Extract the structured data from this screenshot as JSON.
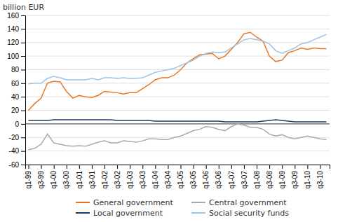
{
  "chart_data": {
    "type": "line",
    "ylabel": "billion EUR",
    "categories": [
      "q1-99",
      null,
      "q3-99",
      null,
      "q1-00",
      null,
      "q3-00",
      null,
      "q1-01",
      null,
      "q3-01",
      null,
      "q1-02",
      null,
      "q3-02",
      null,
      "q1-03",
      null,
      "q3-03",
      null,
      "q1-04",
      null,
      "q3-04",
      null,
      "q1-05",
      null,
      "q3-05",
      null,
      "q1-06",
      null,
      "q3-06",
      null,
      "q1-07",
      null,
      "q3-07",
      null,
      "q1-08",
      null,
      "q3-08",
      null,
      "q1-09",
      null,
      "q3-09",
      null,
      "q1-10",
      null,
      "q3-10",
      null
    ],
    "series": [
      {
        "name": "General government",
        "color": "#E87722",
        "values": [
          20,
          30,
          38,
          60,
          63,
          62,
          48,
          38,
          42,
          40,
          39,
          42,
          48,
          47,
          46,
          44,
          46,
          46,
          52,
          58,
          65,
          68,
          68,
          72,
          80,
          90,
          96,
          102,
          103,
          104,
          96,
          100,
          110,
          120,
          133,
          135,
          128,
          122,
          100,
          92,
          94,
          105,
          108,
          112,
          110,
          112,
          111,
          111
        ]
      },
      {
        "name": "Central government",
        "color": "#AAAAAA",
        "values": [
          -38,
          -36,
          -30,
          -15,
          -28,
          -30,
          -32,
          -33,
          -32,
          -33,
          -30,
          -27,
          -25,
          -28,
          -28,
          -25,
          -26,
          -27,
          -25,
          -22,
          -22,
          -23,
          -23,
          -20,
          -18,
          -14,
          -10,
          -8,
          -4,
          -5,
          -8,
          -10,
          -4,
          0,
          -2,
          -5,
          -5,
          -8,
          -15,
          -18,
          -16,
          -20,
          -22,
          -20,
          -18,
          -20,
          -22,
          -23
        ]
      },
      {
        "name": "Local government",
        "color": "#1F3864",
        "values": [
          5,
          5,
          5,
          5,
          6,
          6,
          6,
          6,
          6,
          6,
          6,
          6,
          6,
          6,
          5,
          5,
          5,
          5,
          5,
          5,
          4,
          4,
          4,
          4,
          4,
          4,
          4,
          4,
          4,
          4,
          4,
          3,
          3,
          3,
          3,
          3,
          3,
          4,
          5,
          6,
          5,
          4,
          3,
          3,
          3,
          3,
          3,
          3
        ]
      },
      {
        "name": "Social security funds",
        "color": "#9DC3E6",
        "values": [
          59,
          60,
          60,
          67,
          70,
          68,
          65,
          65,
          65,
          65,
          67,
          65,
          68,
          68,
          67,
          68,
          67,
          67,
          68,
          72,
          76,
          78,
          80,
          82,
          86,
          90,
          94,
          100,
          104,
          106,
          105,
          106,
          112,
          118,
          124,
          126,
          124,
          122,
          118,
          108,
          104,
          108,
          112,
          118,
          120,
          124,
          128,
          132
        ]
      }
    ],
    "ylim": [
      -60,
      160
    ],
    "yticks": [
      -60,
      -40,
      -20,
      0,
      20,
      40,
      60,
      80,
      100,
      120,
      140,
      160
    ],
    "grid": true,
    "legend": "bottom"
  }
}
